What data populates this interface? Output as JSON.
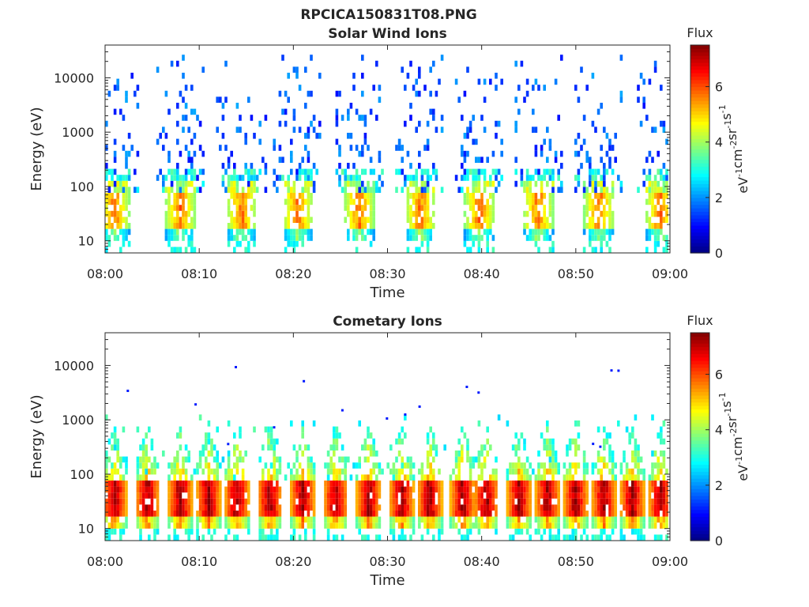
{
  "figure_title": "RPCICA150831T08.PNG",
  "colormap": "jet",
  "chart_data": [
    {
      "type": "heatmap",
      "title": "Solar Wind Ions",
      "xlabel": "Time",
      "ylabel": "Energy (eV)",
      "x_ticks": [
        "08:00",
        "08:10",
        "08:20",
        "08:30",
        "08:40",
        "08:50",
        "09:00"
      ],
      "x_range": [
        "08:00",
        "09:00"
      ],
      "y_scale": "log",
      "y_ticks": [
        10,
        100,
        1000,
        10000
      ],
      "y_tick_labels": [
        "10",
        "100",
        "1000",
        "10000"
      ],
      "y_range": [
        6,
        40000
      ],
      "colorbar": {
        "title": "Flux",
        "label": "eV-1cm-2sr-1s-1",
        "range": [
          0,
          7.5
        ],
        "ticks": [
          "0",
          "2",
          "4",
          "6"
        ]
      },
      "bursts_minutes": [
        1.0,
        8.0,
        14.5,
        20.5,
        27.0,
        33.5,
        39.8,
        46.0,
        52.5,
        59.0
      ],
      "peak_energy_eV": 35,
      "sparse_energy_range_eV": [
        100,
        25000
      ]
    },
    {
      "type": "heatmap",
      "title": "Cometary Ions",
      "xlabel": "Time",
      "ylabel": "Energy (eV)",
      "x_ticks": [
        "08:00",
        "08:10",
        "08:20",
        "08:30",
        "08:40",
        "08:50",
        "09:00"
      ],
      "x_range": [
        "08:00",
        "09:00"
      ],
      "y_scale": "log",
      "y_ticks": [
        10,
        100,
        1000,
        10000
      ],
      "y_tick_labels": [
        "10",
        "100",
        "1000",
        "10000"
      ],
      "y_range": [
        6,
        40000
      ],
      "colorbar": {
        "title": "Flux",
        "label": "eV-1cm-2sr-1s-1",
        "range": [
          0,
          7.5
        ],
        "ticks": [
          "0",
          "2",
          "4",
          "6"
        ]
      },
      "bursts_minutes": [
        1.0,
        4.5,
        8.0,
        11.0,
        14.0,
        17.5,
        21.0,
        24.5,
        28.0,
        31.5,
        34.5,
        38.0,
        40.5,
        44.0,
        47.0,
        50.0,
        53.0,
        56.0,
        59.0
      ],
      "peak_energy_eV": 35,
      "sparse_energy_range_eV": [
        200,
        12000
      ]
    }
  ]
}
